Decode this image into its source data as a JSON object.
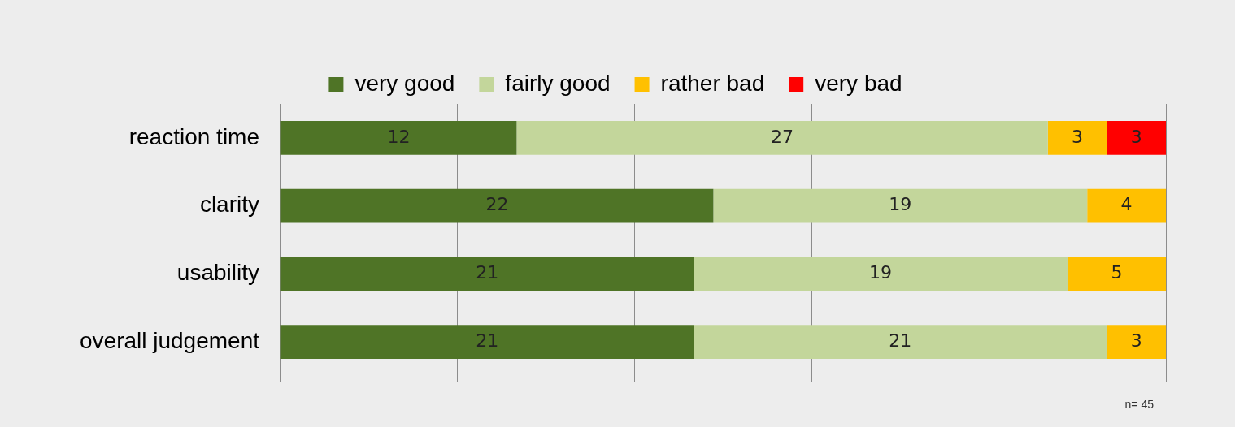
{
  "chart_data": {
    "type": "bar",
    "orientation": "horizontal",
    "stacked": true,
    "categories": [
      "reaction time",
      "clarity",
      "usability",
      "overall judgement"
    ],
    "series": [
      {
        "name": "very good",
        "color": "#4f7426",
        "values": [
          12,
          22,
          21,
          21
        ]
      },
      {
        "name": "fairly good",
        "color": "#c3d69b",
        "values": [
          27,
          19,
          19,
          21
        ]
      },
      {
        "name": "rather bad",
        "color": "#ffc000",
        "values": [
          3,
          4,
          5,
          3
        ]
      },
      {
        "name": "very bad",
        "color": "#ff0000",
        "values": [
          3,
          null,
          null,
          null
        ]
      }
    ],
    "xlim": [
      0,
      45
    ],
    "xticks": [
      {
        "value": 0,
        "label": null
      },
      {
        "value": 9,
        "label": null
      },
      {
        "value": 18,
        "label": null
      },
      {
        "value": 27,
        "label": null
      },
      {
        "value": 36,
        "label": null
      },
      {
        "value": 45,
        "label": null
      }
    ],
    "grid": "x",
    "legend": "top",
    "tick_labels": "y",
    "data_labels": true,
    "annotations": [
      "n= 45"
    ]
  }
}
